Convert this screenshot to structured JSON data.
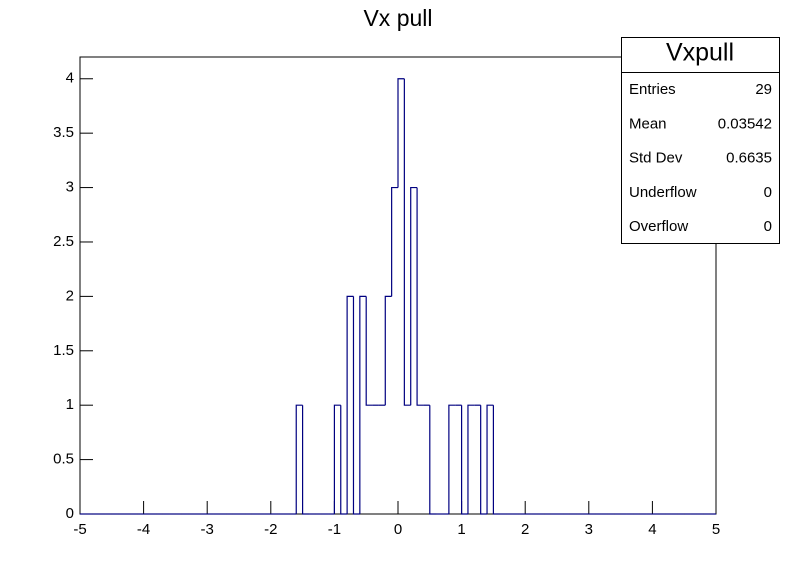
{
  "chart_data": {
    "type": "histogram",
    "title": "Vx pull",
    "bins": [
      -5,
      -4.9,
      -4.8,
      -4.7,
      -4.6,
      -4.5,
      -4.4,
      -4.3,
      -4.2,
      -4.1,
      -4,
      -3.9,
      -3.8,
      -3.7,
      -3.6,
      -3.5,
      -3.4,
      -3.3,
      -3.2,
      -3.1,
      -3,
      -2.9,
      -2.8,
      -2.7,
      -2.6,
      -2.5,
      -2.4,
      -2.3,
      -2.2,
      -2.1,
      -2,
      -1.9,
      -1.8,
      -1.7,
      -1.6,
      -1.5,
      -1.4,
      -1.3,
      -1.2,
      -1.1,
      -1,
      -0.9,
      -0.8,
      -0.7,
      -0.6,
      -0.5,
      -0.4,
      -0.3,
      -0.2,
      -0.1,
      0,
      0.1,
      0.2,
      0.3,
      0.4,
      0.5,
      0.6,
      0.7,
      0.8,
      0.9,
      1,
      1.1,
      1.2,
      1.3,
      1.4,
      1.5,
      1.6,
      1.7,
      1.8,
      1.9,
      2,
      2.1,
      2.2,
      2.3,
      2.4,
      2.5,
      2.6,
      2.7,
      2.8,
      2.9,
      3,
      3.1,
      3.2,
      3.3,
      3.4,
      3.5,
      3.6,
      3.7,
      3.8,
      3.9,
      4,
      4.1,
      4.2,
      4.3,
      4.4,
      4.5,
      4.6,
      4.7,
      4.8,
      4.9,
      5
    ],
    "values": [
      0,
      0,
      0,
      0,
      0,
      0,
      0,
      0,
      0,
      0,
      0,
      0,
      0,
      0,
      0,
      0,
      0,
      0,
      0,
      0,
      0,
      0,
      0,
      0,
      0,
      0,
      0,
      0,
      0,
      0,
      0,
      0,
      0,
      0,
      1,
      0,
      0,
      0,
      0,
      0,
      1,
      0,
      2,
      0,
      2,
      1,
      1,
      1,
      2,
      3,
      4,
      1,
      3,
      1,
      1,
      0,
      0,
      0,
      1,
      1,
      0,
      1,
      1,
      0,
      1,
      0,
      0,
      0,
      0,
      0,
      0,
      0,
      0,
      0,
      0,
      0,
      0,
      0,
      0,
      0,
      0,
      0,
      0,
      0,
      0,
      0,
      0,
      0,
      0,
      0,
      0,
      0,
      0,
      0,
      0,
      0,
      0,
      0,
      0,
      0
    ],
    "color": "#000080",
    "xlim": [
      -5,
      5
    ],
    "xticks": [
      -5,
      -4,
      -3,
      -2,
      -1,
      0,
      1,
      2,
      3,
      4,
      5
    ],
    "ylim": [
      0,
      4.2
    ],
    "yticks": [
      0,
      0.5,
      1,
      1.5,
      2,
      2.5,
      3,
      3.5,
      4
    ],
    "stats": {
      "title": "Vxpull",
      "rows": [
        {
          "label": "Entries",
          "value": 29
        },
        {
          "label": "Mean",
          "value": 0.03542
        },
        {
          "label": "Std Dev",
          "value": 0.6635
        },
        {
          "label": "Underflow",
          "value": 0
        },
        {
          "label": "Overflow",
          "value": 0
        }
      ]
    }
  }
}
